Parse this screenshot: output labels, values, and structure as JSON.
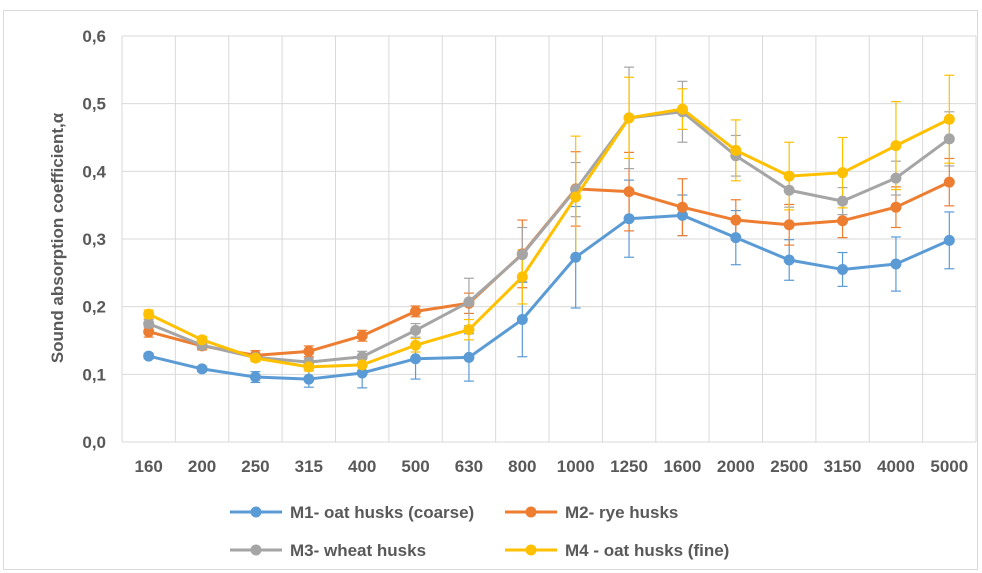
{
  "chart_data": {
    "type": "line",
    "title": "",
    "ylabel": "Sound absorption coefficient,α",
    "xlabel": "",
    "ylim": [
      0,
      0.6
    ],
    "yticks": [
      "0,0",
      "0,1",
      "0,2",
      "0,3",
      "0,4",
      "0,5",
      "0,6"
    ],
    "categories": [
      "160",
      "200",
      "250",
      "315",
      "400",
      "500",
      "630",
      "800",
      "1000",
      "1250",
      "1600",
      "2000",
      "2500",
      "3150",
      "4000",
      "5000"
    ],
    "grid": true,
    "legend_position": "bottom",
    "series": [
      {
        "name": "M1- oat husks (coarse)",
        "color": "#5b9bd5",
        "values": [
          0.127,
          0.108,
          0.096,
          0.093,
          0.102,
          0.123,
          0.125,
          0.181,
          0.273,
          0.33,
          0.335,
          0.302,
          0.269,
          0.255,
          0.263,
          0.298
        ],
        "errors": [
          0.004,
          0.004,
          0.008,
          0.012,
          0.022,
          0.03,
          0.035,
          0.055,
          0.075,
          0.057,
          0.03,
          0.04,
          0.03,
          0.025,
          0.04,
          0.042
        ]
      },
      {
        "name": "M2- rye husks",
        "color": "#ed7d31",
        "values": [
          0.163,
          0.142,
          0.128,
          0.134,
          0.157,
          0.193,
          0.205,
          0.278,
          0.374,
          0.37,
          0.347,
          0.328,
          0.321,
          0.327,
          0.347,
          0.384
        ],
        "errors": [
          0.008,
          0.006,
          0.007,
          0.008,
          0.008,
          0.008,
          0.015,
          0.05,
          0.055,
          0.058,
          0.042,
          0.03,
          0.03,
          0.025,
          0.03,
          0.035
        ]
      },
      {
        "name": "M3- wheat husks",
        "color": "#a5a5a5",
        "values": [
          0.175,
          0.143,
          0.125,
          0.118,
          0.126,
          0.165,
          0.207,
          0.277,
          0.373,
          0.479,
          0.488,
          0.423,
          0.372,
          0.356,
          0.39,
          0.448
        ],
        "errors": [
          0.006,
          0.005,
          0.006,
          0.006,
          0.008,
          0.01,
          0.035,
          0.04,
          0.04,
          0.075,
          0.045,
          0.03,
          0.025,
          0.02,
          0.025,
          0.04
        ]
      },
      {
        "name": "M4 - oat husks (fine)",
        "color": "#ffc000",
        "values": [
          0.189,
          0.151,
          0.124,
          0.111,
          0.114,
          0.143,
          0.166,
          0.244,
          0.362,
          0.479,
          0.492,
          0.431,
          0.393,
          0.398,
          0.438,
          0.477
        ],
        "errors": [
          0.006,
          0.005,
          0.005,
          0.006,
          0.008,
          0.01,
          0.015,
          0.04,
          0.09,
          0.06,
          0.03,
          0.045,
          0.05,
          0.052,
          0.065,
          0.065
        ]
      }
    ]
  }
}
